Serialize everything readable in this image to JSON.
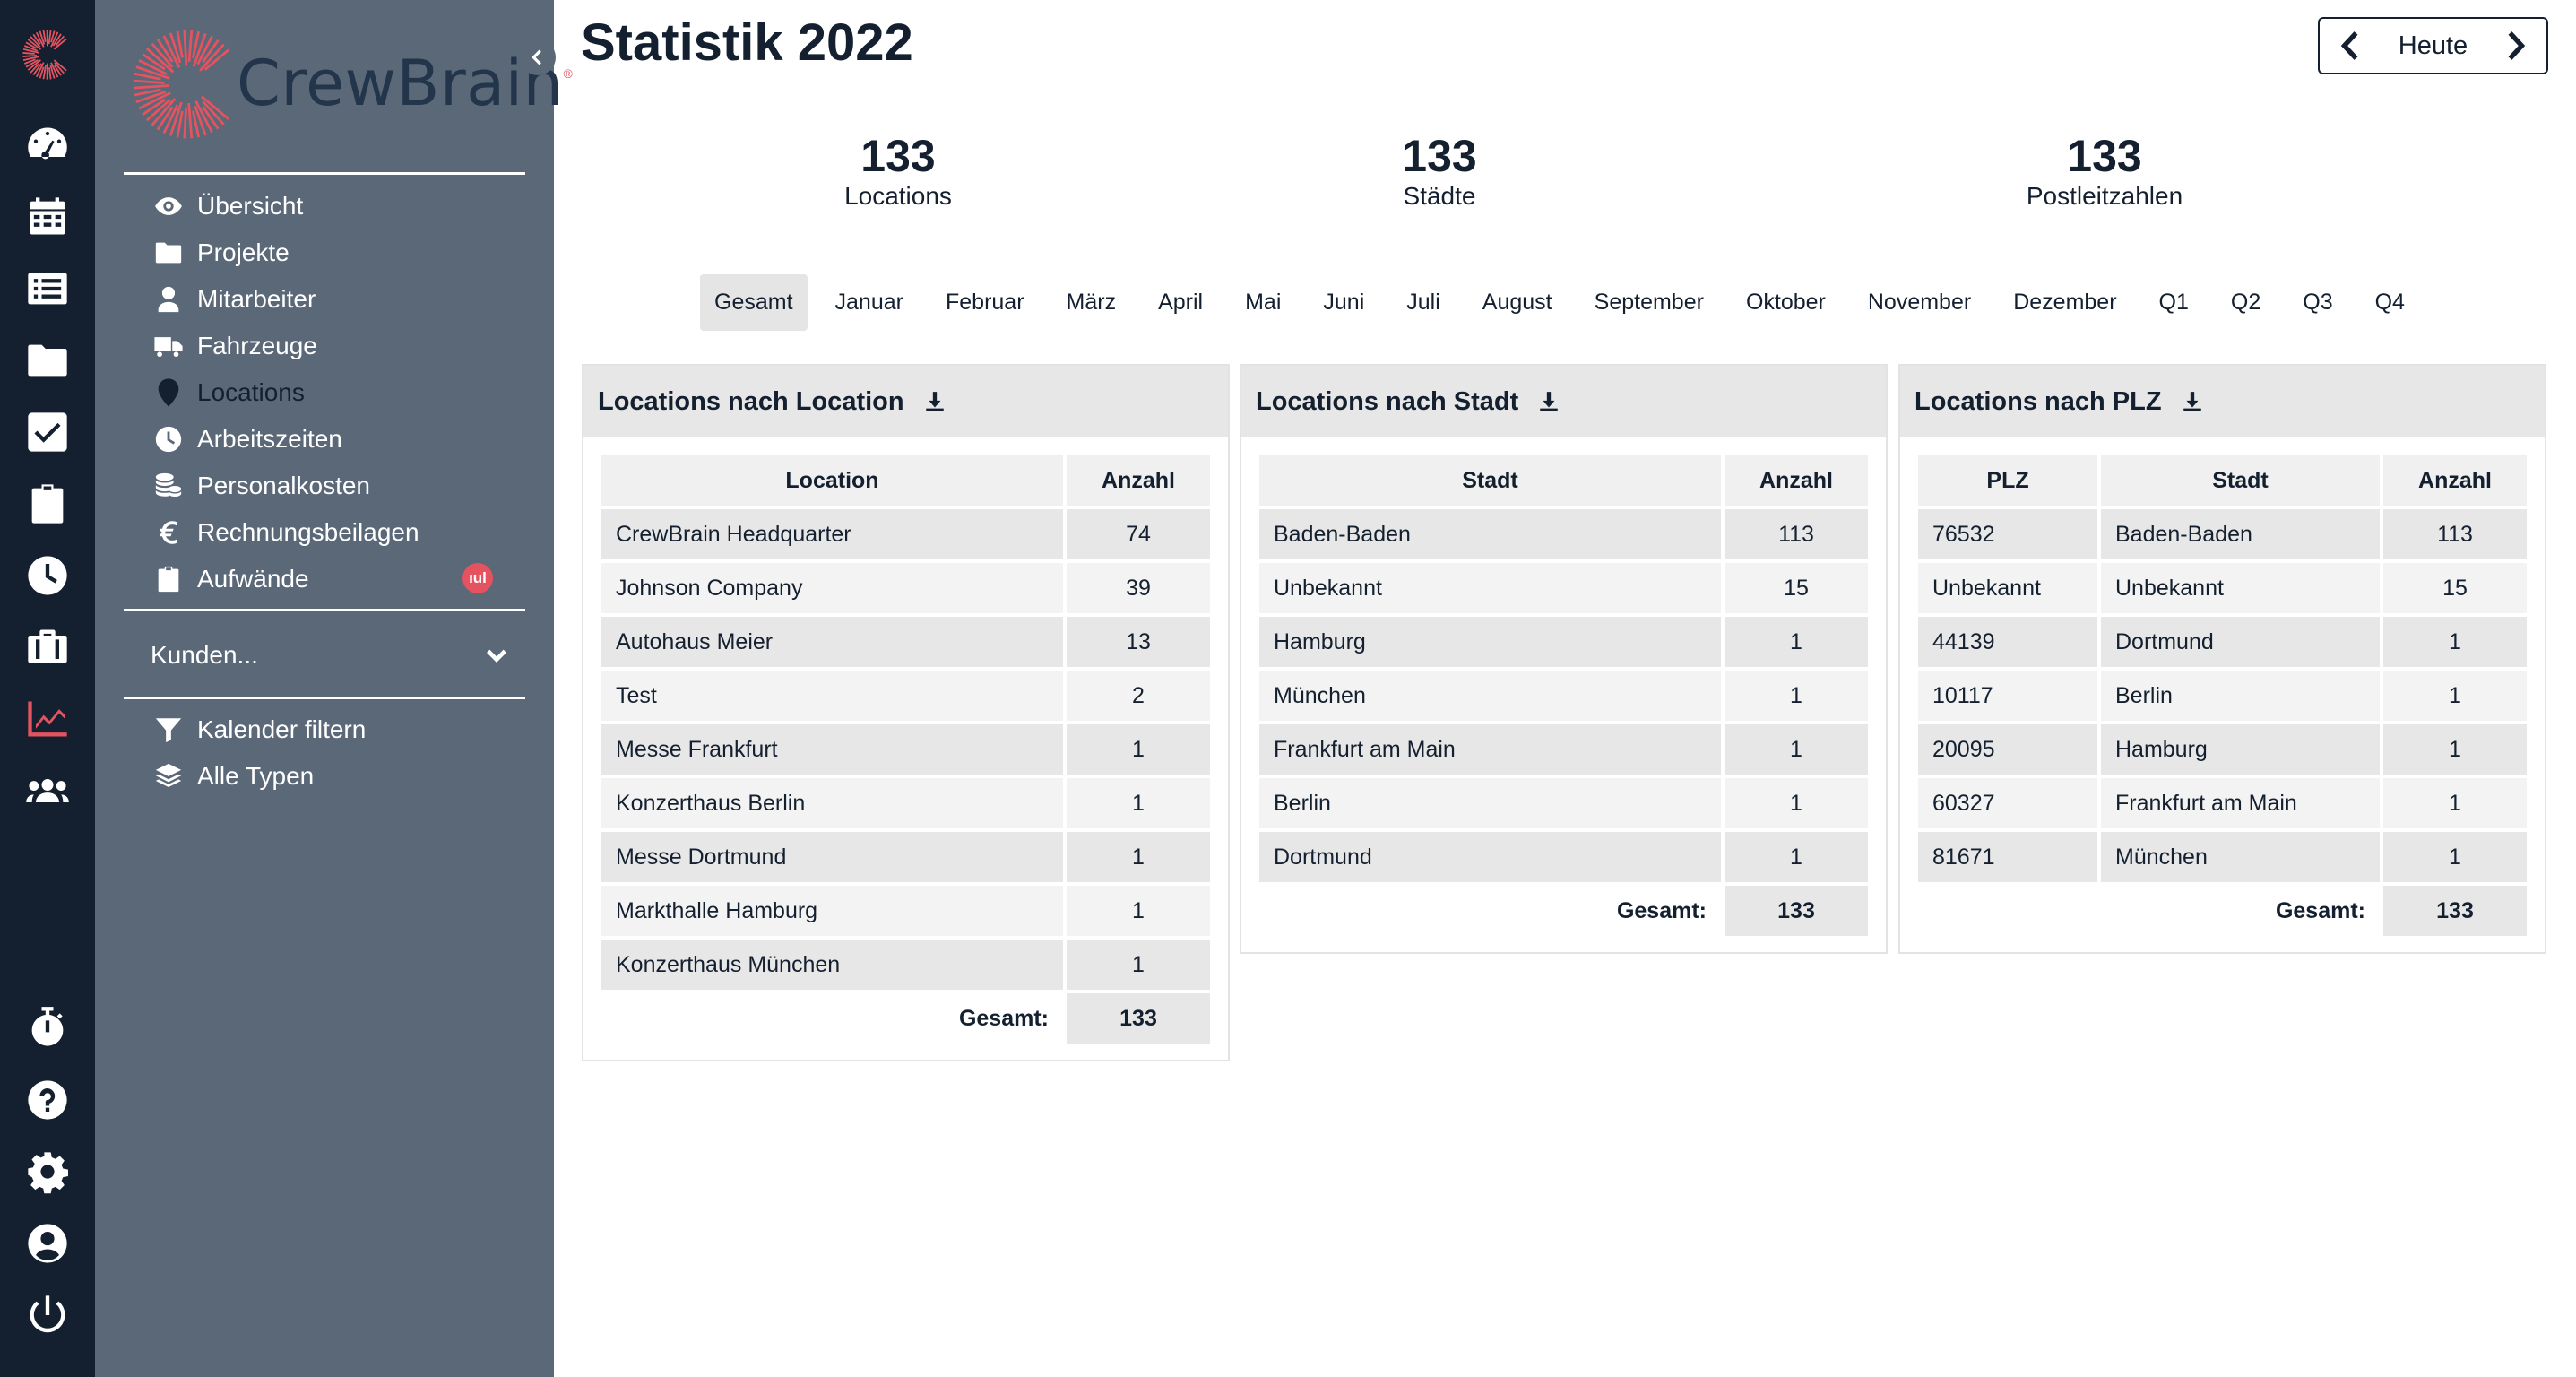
{
  "rail": {
    "items": [
      "dashboard-icon",
      "calendar-icon",
      "list-icon",
      "folder-icon",
      "checkbox-icon",
      "clipboard-icon",
      "clock-icon",
      "briefcase-icon",
      "chart-icon",
      "users-icon",
      "stopwatch-icon",
      "help-icon",
      "gear-icon",
      "user-circle-icon",
      "power-icon"
    ],
    "active": "chart-icon",
    "accent": "#e4535f"
  },
  "brand": {
    "name": "CrewBrain",
    "reg": "®"
  },
  "nav": {
    "items": [
      {
        "label": "Übersicht",
        "icon": "eye-icon"
      },
      {
        "label": "Projekte",
        "icon": "folder-icon"
      },
      {
        "label": "Mitarbeiter",
        "icon": "user-icon"
      },
      {
        "label": "Fahrzeuge",
        "icon": "truck-icon"
      },
      {
        "label": "Locations",
        "icon": "map-pin-icon"
      },
      {
        "label": "Arbeitszeiten",
        "icon": "clock-icon"
      },
      {
        "label": "Personalkosten",
        "icon": "coins-icon"
      },
      {
        "label": "Rechnungsbeilagen",
        "icon": "euro-icon"
      },
      {
        "label": "Aufwände",
        "icon": "clipboard-icon"
      }
    ],
    "badge": "ıul",
    "kunden": "Kunden...",
    "filters": [
      {
        "label": "Kalender filtern",
        "icon": "filter-icon"
      },
      {
        "label": "Alle Typen",
        "icon": "layers-icon"
      }
    ]
  },
  "header": {
    "title": "Statistik 2022",
    "today": "Heute"
  },
  "kpis": [
    {
      "value": "133",
      "label": "Locations"
    },
    {
      "value": "133",
      "label": "Städte"
    },
    {
      "value": "133",
      "label": "Postleitzahlen"
    }
  ],
  "periods": [
    "Gesamt",
    "Januar",
    "Februar",
    "März",
    "April",
    "Mai",
    "Juni",
    "Juli",
    "August",
    "September",
    "Oktober",
    "November",
    "Dezember",
    "Q1",
    "Q2",
    "Q3",
    "Q4"
  ],
  "active_period": "Gesamt",
  "tables": {
    "location": {
      "title": "Locations nach Location",
      "headers": [
        "Location",
        "Anzahl"
      ],
      "rows": [
        [
          "CrewBrain Headquarter",
          "74"
        ],
        [
          "Johnson Company",
          "39"
        ],
        [
          "Autohaus Meier",
          "13"
        ],
        [
          "Test",
          "2"
        ],
        [
          "Messe Frankfurt",
          "1"
        ],
        [
          "Konzerthaus Berlin",
          "1"
        ],
        [
          "Messe Dortmund",
          "1"
        ],
        [
          "Markthalle Hamburg",
          "1"
        ],
        [
          "Konzerthaus München",
          "1"
        ]
      ],
      "total_label": "Gesamt:",
      "total": "133"
    },
    "stadt": {
      "title": "Locations nach Stadt",
      "headers": [
        "Stadt",
        "Anzahl"
      ],
      "rows": [
        [
          "Baden-Baden",
          "113"
        ],
        [
          "Unbekannt",
          "15"
        ],
        [
          "Hamburg",
          "1"
        ],
        [
          "München",
          "1"
        ],
        [
          "Frankfurt am Main",
          "1"
        ],
        [
          "Berlin",
          "1"
        ],
        [
          "Dortmund",
          "1"
        ]
      ],
      "total_label": "Gesamt:",
      "total": "133"
    },
    "plz": {
      "title": "Locations nach PLZ",
      "headers": [
        "PLZ",
        "Stadt",
        "Anzahl"
      ],
      "rows": [
        [
          "76532",
          "Baden-Baden",
          "113"
        ],
        [
          "Unbekannt",
          "Unbekannt",
          "15"
        ],
        [
          "44139",
          "Dortmund",
          "1"
        ],
        [
          "10117",
          "Berlin",
          "1"
        ],
        [
          "20095",
          "Hamburg",
          "1"
        ],
        [
          "60327",
          "Frankfurt am Main",
          "1"
        ],
        [
          "81671",
          "München",
          "1"
        ]
      ],
      "total_label": "Gesamt:",
      "total": "133"
    }
  }
}
